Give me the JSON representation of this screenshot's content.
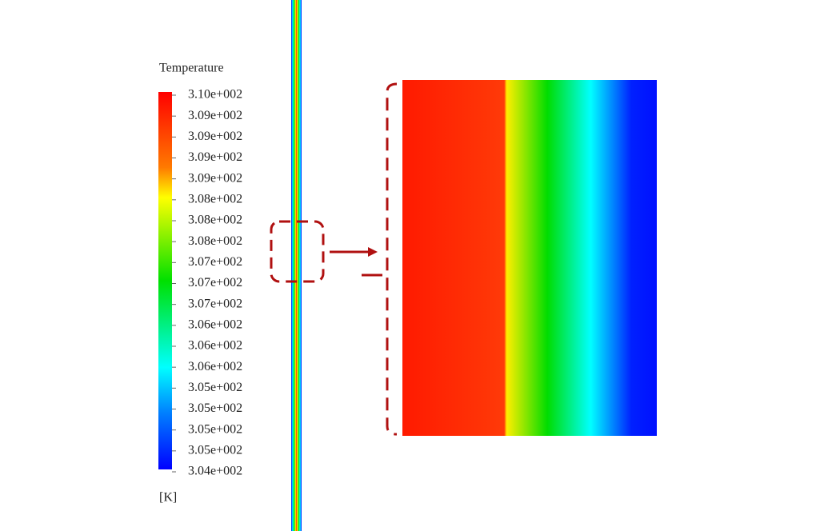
{
  "legend": {
    "title": "Temperature",
    "labels": [
      "3.10e+002",
      "3.09e+002",
      "3.09e+002",
      "3.09e+002",
      "3.09e+002",
      "3.08e+002",
      "3.08e+002",
      "3.08e+002",
      "3.07e+002",
      "3.07e+002",
      "3.07e+002",
      "3.06e+002",
      "3.06e+002",
      "3.06e+002",
      "3.05e+002",
      "3.05e+002",
      "3.05e+002",
      "3.05e+002",
      "3.04e+002"
    ],
    "unit": "[K]"
  }
}
